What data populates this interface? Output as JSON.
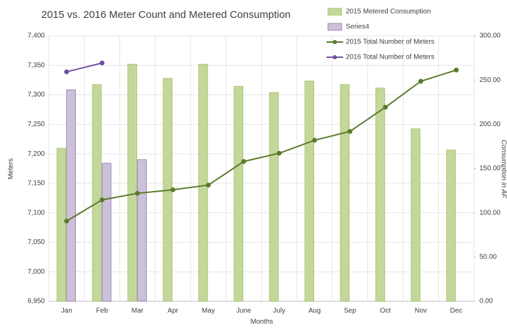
{
  "chart_data": {
    "type": "combo",
    "title": "2015 vs. 2016 Meter Count and Metered Consumption",
    "x_label": "Months",
    "y_label": "Meters",
    "y2_label": "Consumption in AF",
    "categories": [
      "Jan",
      "Feb",
      "Mar",
      "Apr",
      "May",
      "June",
      "July",
      "Aug",
      "Sep",
      "Oct",
      "Nov",
      "Dec"
    ],
    "ylim": [
      6950,
      7400
    ],
    "yticks": [
      {
        "value": 6950,
        "label": "6,950"
      },
      {
        "value": 7000,
        "label": "7,000"
      },
      {
        "value": 7050,
        "label": "7,050"
      },
      {
        "value": 7100,
        "label": "7,100"
      },
      {
        "value": 7150,
        "label": "7,150"
      },
      {
        "value": 7200,
        "label": "7,200"
      },
      {
        "value": 7250,
        "label": "7,250"
      },
      {
        "value": 7300,
        "label": "7,300"
      },
      {
        "value": 7350,
        "label": "7,350"
      },
      {
        "value": 7400,
        "label": "7,400"
      }
    ],
    "y2lim": [
      0,
      300
    ],
    "y2ticks": [
      {
        "value": 0,
        "label": "0.00"
      },
      {
        "value": 50,
        "label": "50.00"
      },
      {
        "value": 100,
        "label": "100.00"
      },
      {
        "value": 150,
        "label": "150.00"
      },
      {
        "value": 200,
        "label": "200.00"
      },
      {
        "value": 250,
        "label": "250.00"
      },
      {
        "value": 300,
        "label": "300.00"
      }
    ],
    "grid": true,
    "legend": "top-right",
    "series": [
      {
        "name": "2015 Metered Consumption",
        "kind": "bar",
        "axis": "y2",
        "color": "#c4d79b",
        "values": [
          173,
          245,
          268,
          252,
          268,
          243,
          236,
          249,
          245,
          241,
          195,
          171
        ]
      },
      {
        "name": "Series4",
        "kind": "bar",
        "axis": "y2",
        "color": "#ccc0da",
        "values": [
          239,
          156,
          160,
          null,
          null,
          null,
          null,
          null,
          null,
          null,
          null,
          null
        ]
      },
      {
        "name": "2015 Total Number of Meters",
        "kind": "line",
        "axis": "y",
        "color": "#5a7a2a",
        "values": [
          7086,
          7122,
          7133,
          7139,
          7147,
          7187,
          7201,
          7223,
          7238,
          7279,
          7323,
          7342
        ]
      },
      {
        "name": "2016 Total Number of Meters",
        "kind": "line",
        "axis": "y",
        "color": "#7050a0",
        "values": [
          7339,
          7354,
          null,
          null,
          null,
          null,
          null,
          null,
          null,
          null,
          null,
          null
        ]
      }
    ]
  }
}
